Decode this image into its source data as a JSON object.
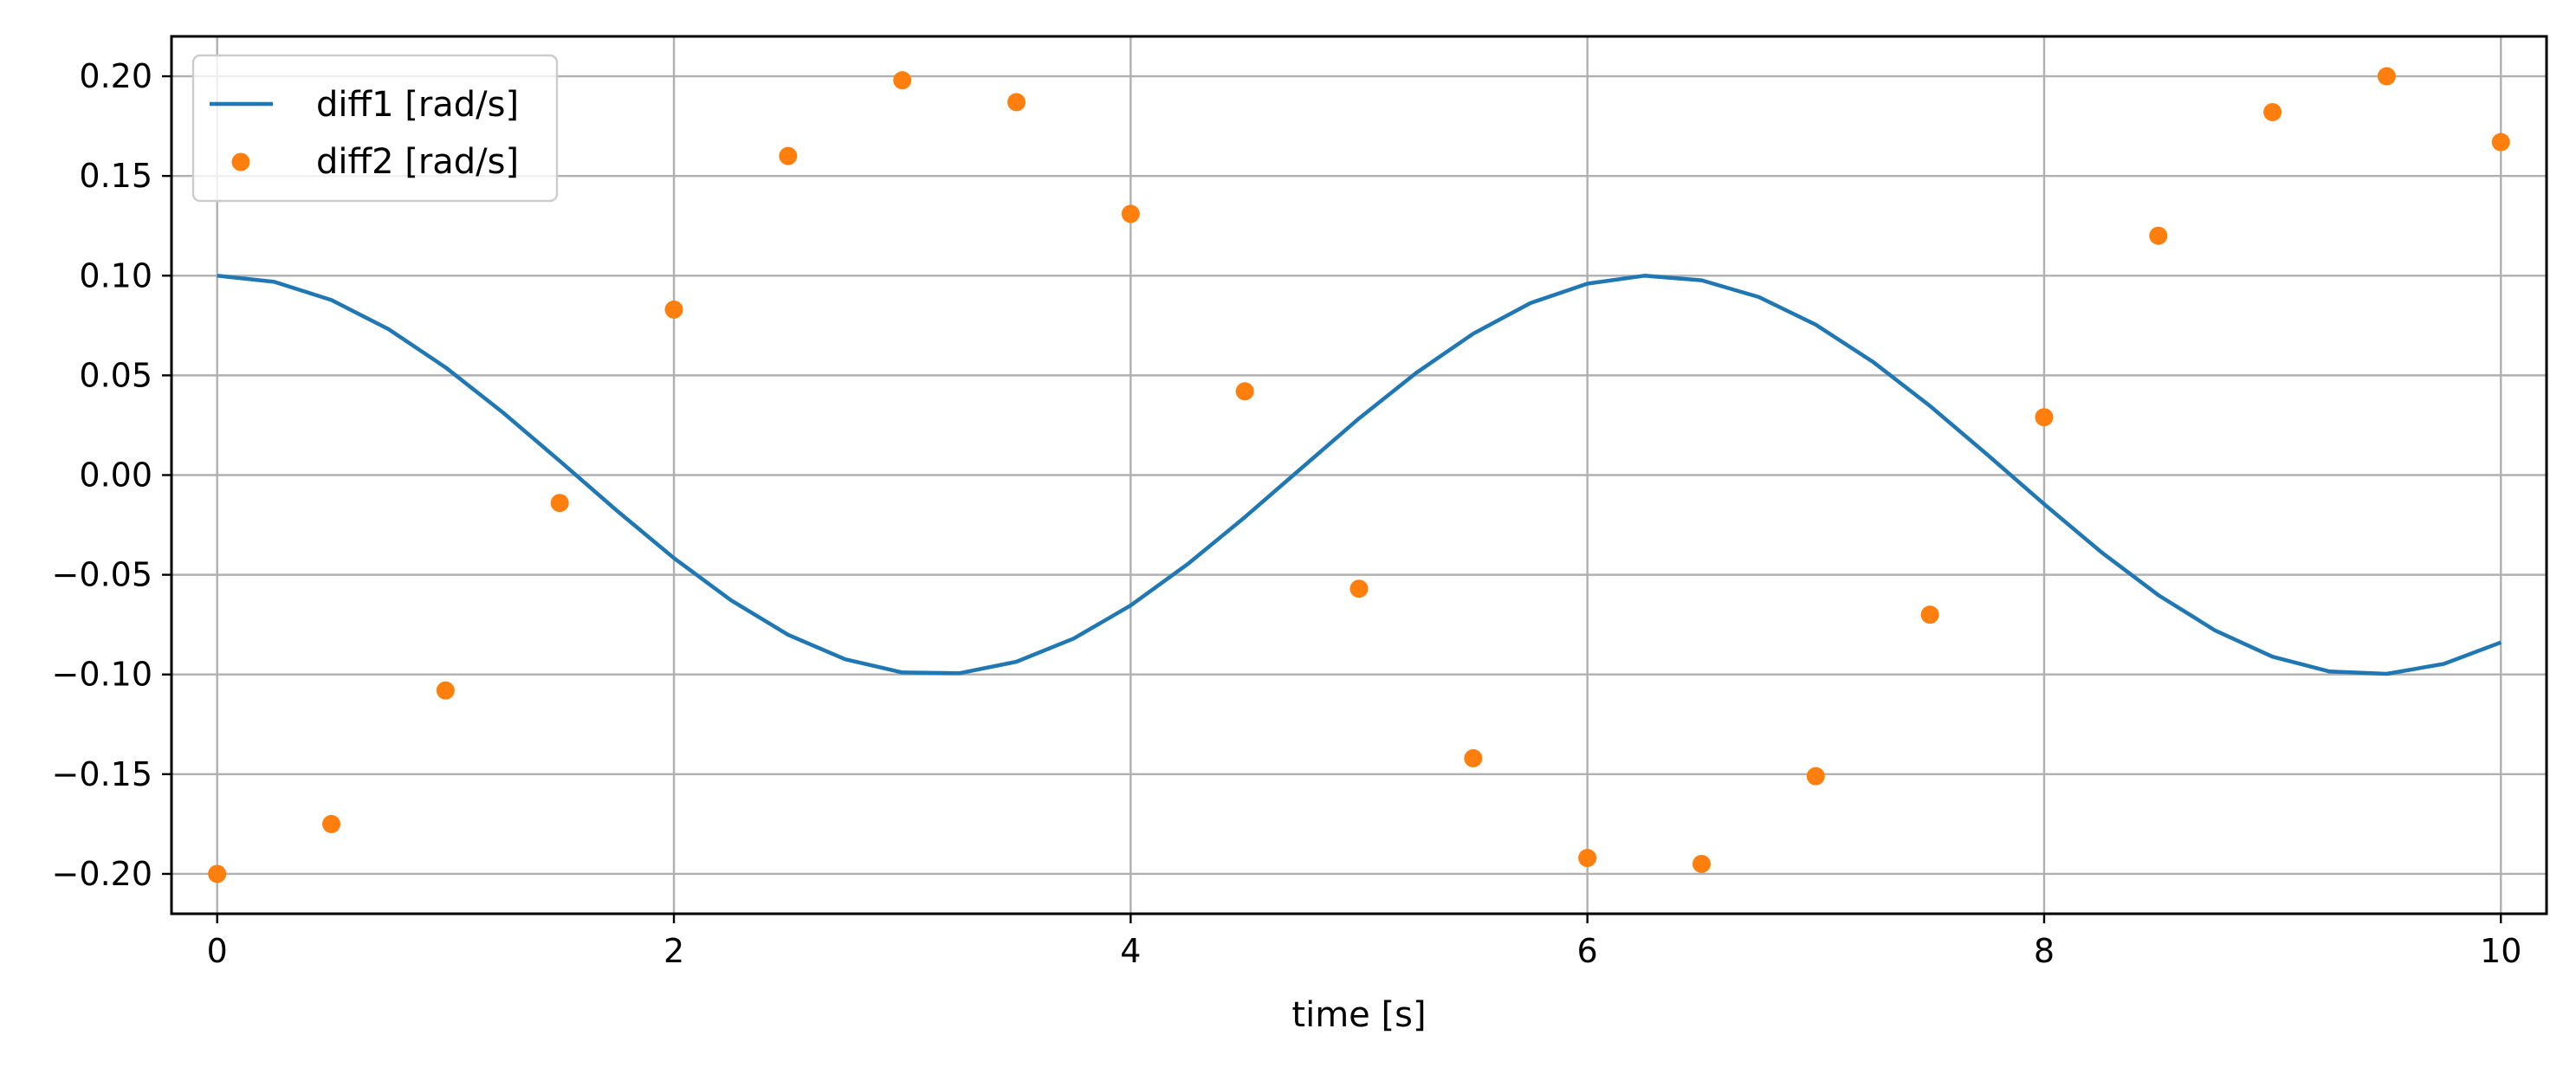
{
  "chart_data": {
    "type": "line",
    "title": "",
    "xlabel": "time [s]",
    "ylabel": "",
    "xlim": [
      -0.2,
      10.2
    ],
    "ylim": [
      -0.22,
      0.22
    ],
    "x_ticks": [
      0,
      2,
      4,
      6,
      8,
      10
    ],
    "x_tick_labels": [
      "0",
      "2",
      "4",
      "6",
      "8",
      "10"
    ],
    "y_ticks": [
      -0.2,
      -0.15,
      -0.1,
      -0.05,
      0.0,
      0.05,
      0.1,
      0.15,
      0.2
    ],
    "y_tick_labels": [
      "−0.20",
      "−0.15",
      "−0.10",
      "−0.05",
      "0.00",
      "0.05",
      "0.10",
      "0.15",
      "0.20"
    ],
    "grid": true,
    "legend_position": "top-left",
    "series": [
      {
        "name": "diff1 [rad/s]",
        "style": "line",
        "color": "#1f77b4",
        "x": [
          0.0,
          0.25,
          0.5,
          0.75,
          1.0,
          1.25,
          1.5,
          1.75,
          2.0,
          2.25,
          2.5,
          2.75,
          3.0,
          3.25,
          3.5,
          3.75,
          4.0,
          4.25,
          4.5,
          4.75,
          5.0,
          5.25,
          5.5,
          5.75,
          6.0,
          6.25,
          6.5,
          6.75,
          7.0,
          7.25,
          7.5,
          7.75,
          8.0,
          8.25,
          8.5,
          8.75,
          9.0,
          9.25,
          9.5,
          9.75,
          10.0
        ],
        "y": [
          0.1,
          0.0969,
          0.0878,
          0.0732,
          0.054,
          0.0315,
          0.0071,
          -0.0178,
          -0.0416,
          -0.0628,
          -0.0801,
          -0.0924,
          -0.099,
          -0.0994,
          -0.0936,
          -0.082,
          -0.0654,
          -0.0446,
          -0.0211,
          0.0037,
          0.0284,
          0.0512,
          0.0709,
          0.0862,
          0.096,
          0.1,
          0.0977,
          0.0893,
          0.0754,
          0.0568,
          0.0347,
          0.0104,
          -0.0146,
          -0.0386,
          -0.0602,
          -0.078,
          -0.0911,
          -0.0985,
          -0.0997,
          -0.0947,
          -0.0839
        ]
      },
      {
        "name": "diff2 [rad/s]",
        "style": "markers",
        "color": "#ff7f0e",
        "x": [
          0,
          0.5,
          1,
          1.5,
          2,
          2.5,
          3,
          3.5,
          4,
          4.5,
          5,
          5.5,
          6,
          6.5,
          7,
          7.5,
          8,
          8.5,
          9,
          9.5,
          10
        ],
        "y": [
          -0.2,
          -0.175,
          -0.108,
          -0.014,
          0.083,
          0.16,
          0.198,
          0.187,
          0.131,
          0.042,
          -0.057,
          -0.142,
          -0.192,
          -0.195,
          -0.151,
          -0.07,
          0.029,
          0.12,
          0.182,
          0.2,
          0.167
        ]
      }
    ]
  }
}
